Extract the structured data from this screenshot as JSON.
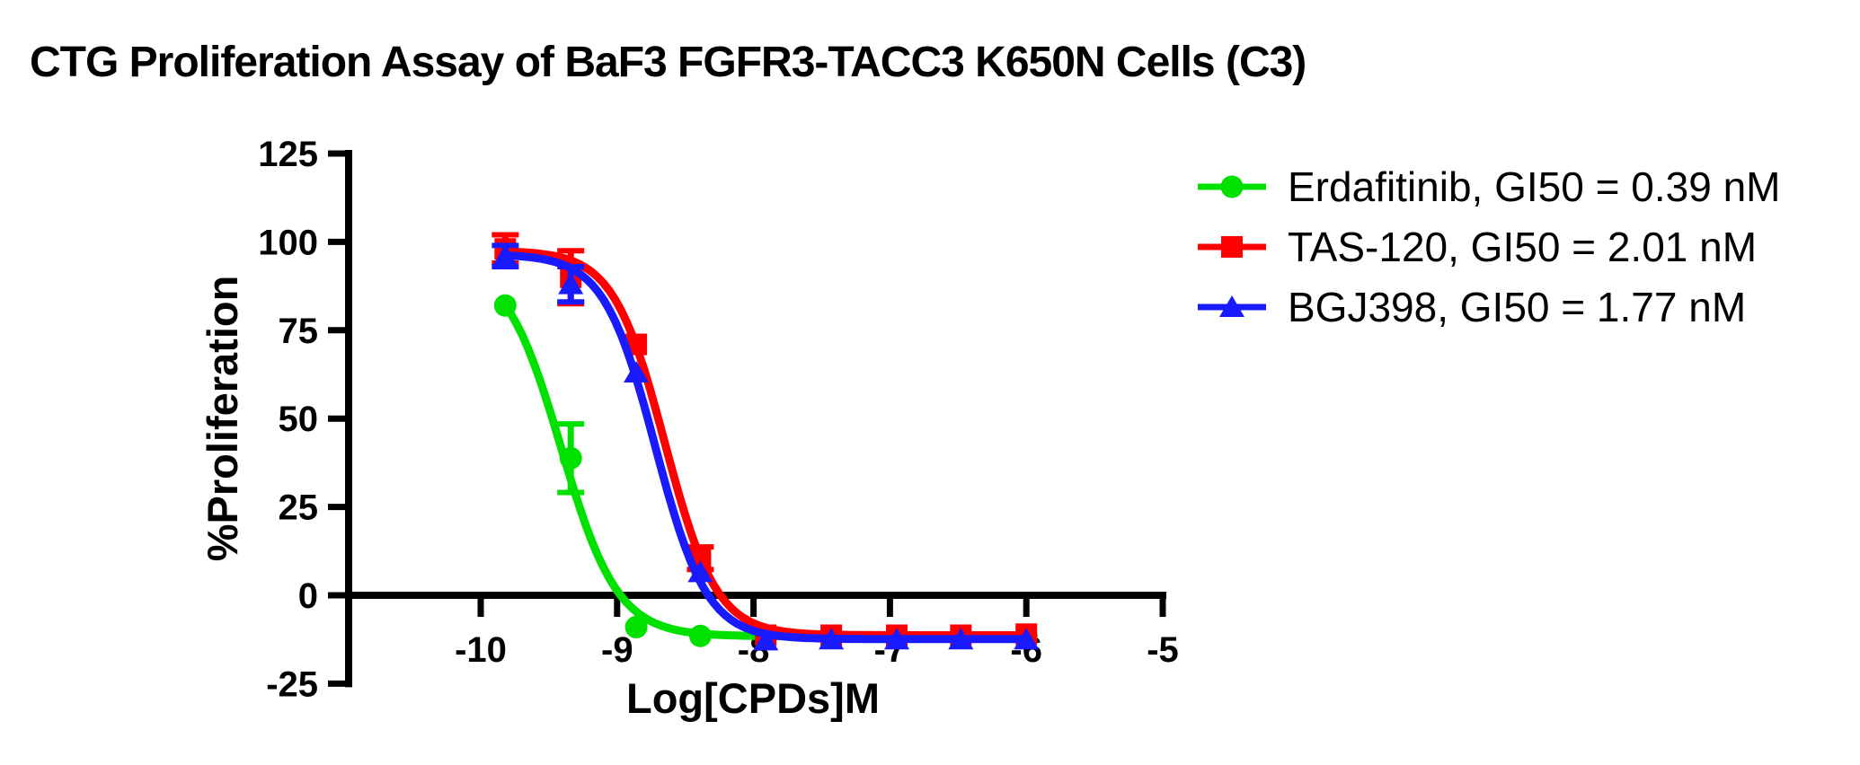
{
  "title": "CTG Proliferation Assay of BaF3 FGFR3-TACC3 K650N Cells (C3)",
  "chart_data": {
    "type": "line",
    "title": "CTG Proliferation Assay of BaF3 FGFR3-TACC3 K650N Cells (C3)",
    "xlabel": "Log[CPDs]M",
    "ylabel": "%Proliferation",
    "xlim": [
      -10.97,
      -5
    ],
    "ylim": [
      -25,
      125
    ],
    "x_ticks": [
      -10,
      -9,
      -8,
      -7,
      -6,
      -5
    ],
    "y_ticks": [
      -25,
      0,
      25,
      50,
      75,
      100,
      125
    ],
    "grid": false,
    "legend_position": "right-top",
    "axis_color": "#000000",
    "background_color": "#FFFFFF",
    "x_axis_drawn_at_y": 0,
    "series": [
      {
        "name": "Erdafitinib",
        "legend_label": "Erdafitinib, GI50 = 0.39 nM",
        "gi50_nM": 0.39,
        "color": "#00E100",
        "marker": "circle",
        "x": [
          -9.82,
          -9.34,
          -8.86,
          -8.39,
          -7.91,
          -7.43,
          -6.95,
          -6.48,
          -6.0
        ],
        "y": [
          82,
          38.8,
          -9,
          -11.5,
          -11.5,
          -11.5,
          -11.5,
          -11.5,
          -11.5
        ],
        "y_err": [
          0,
          9.7,
          0,
          0,
          0,
          0,
          0,
          0,
          0
        ],
        "fit": {
          "top": 95,
          "bottom": -11.6,
          "log_gi50": -9.41,
          "hill": 2.1
        }
      },
      {
        "name": "TAS-120",
        "legend_label": "TAS-120, GI50 = 2.01 nM",
        "gi50_nM": 2.01,
        "color": "#FF0000",
        "marker": "square",
        "x": [
          -9.82,
          -9.34,
          -8.86,
          -8.39,
          -7.91,
          -7.43,
          -6.95,
          -6.48,
          -6.0
        ],
        "y": [
          98,
          90,
          71,
          10.5,
          -11.3,
          -11.3,
          -11.3,
          -11.3,
          -11
        ],
        "y_err": [
          4,
          7.5,
          0,
          3.2,
          0,
          0,
          0,
          0,
          0
        ],
        "fit": {
          "top": 97.5,
          "bottom": -11.3,
          "log_gi50": -8.65,
          "hill": 2.3
        }
      },
      {
        "name": "BGJ398",
        "legend_label": "BGJ398, GI50 = 1.77 nM",
        "gi50_nM": 1.77,
        "color": "#1A1AFF",
        "marker": "triangle",
        "x": [
          -9.82,
          -9.34,
          -8.86,
          -8.39,
          -7.91,
          -7.43,
          -6.95,
          -6.48,
          -6.0
        ],
        "y": [
          96,
          88,
          63,
          6.5,
          -12.8,
          -12.5,
          -12.5,
          -12.5,
          -12.5
        ],
        "y_err": [
          3,
          5,
          0,
          0,
          0,
          0,
          0,
          0,
          0
        ],
        "fit": {
          "top": 96.5,
          "bottom": -12.4,
          "log_gi50": -8.72,
          "hill": 2.3
        }
      }
    ]
  }
}
